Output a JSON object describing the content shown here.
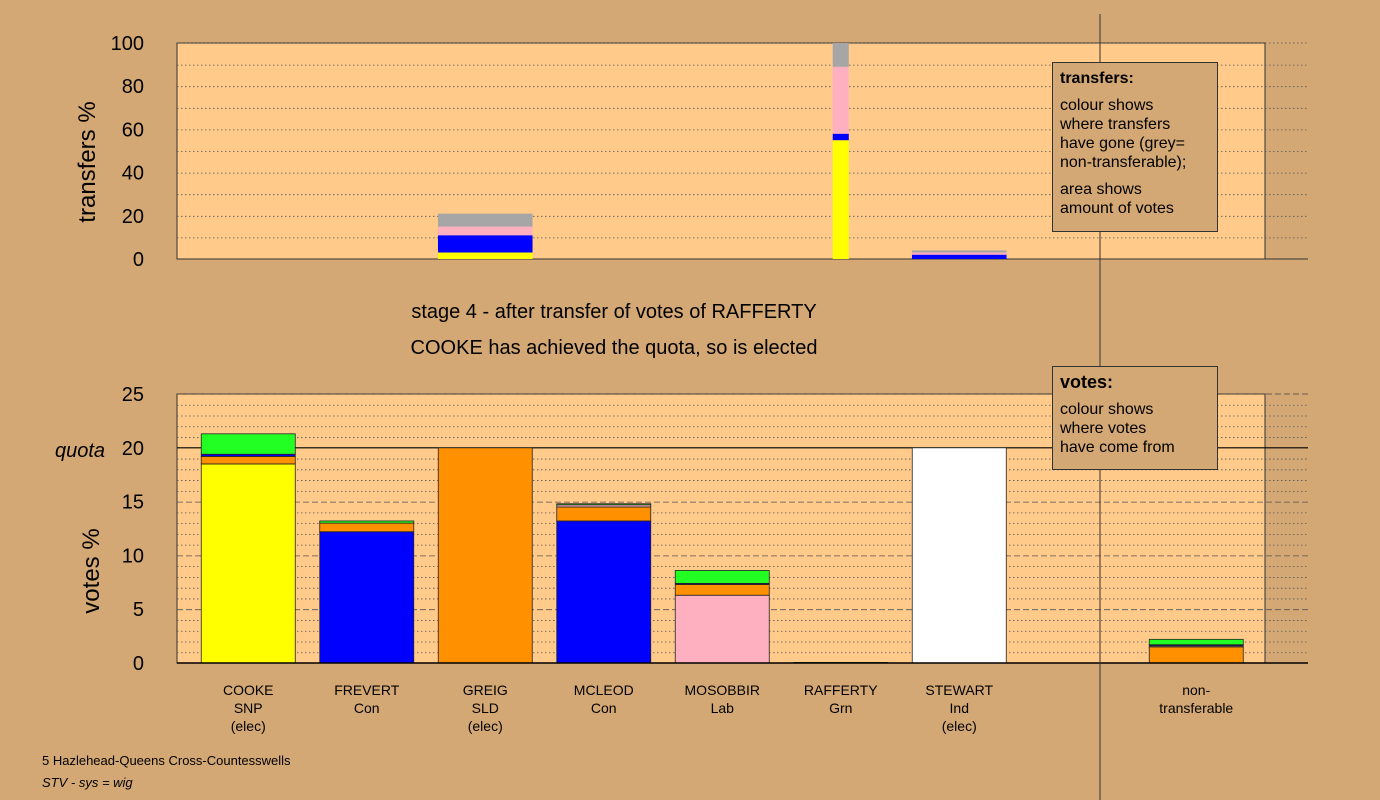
{
  "colors": {
    "background": "#d4a874",
    "plot_bg": "#ffca8a",
    "yellow": "#ffff00",
    "blue": "#0000ff",
    "orange": "#ff9100",
    "pink": "#ffb0c0",
    "green": "#22ff22",
    "white": "#ffffff",
    "grey": "#a6a6a6"
  },
  "stage_text": {
    "line1": "stage 4 - after transfer of votes of RAFFERTY",
    "line2": "COOKE has achieved the quota, so is elected"
  },
  "transfers_legend": {
    "title": "transfers:",
    "lines": [
      "colour shows",
      "where transfers",
      "have gone (grey=",
      "non-transferable);"
    ],
    "lines2": [
      "area shows",
      "amount of votes"
    ]
  },
  "votes_legend": {
    "title": "votes:",
    "lines": [
      "colour shows",
      "where votes",
      "have come from"
    ]
  },
  "footer": {
    "ward": "5 Hazlehead-Queens Cross-Countesswells",
    "system": "STV - sys = wig"
  },
  "chart_data": [
    {
      "type": "bar",
      "ylabel": "transfers %",
      "ylim": [
        0,
        100
      ],
      "yticks": [
        0,
        20,
        40,
        60,
        80,
        100
      ],
      "bars": [
        {
          "column": 2,
          "width_frac": 0.6,
          "segments": [
            {
              "color": "yellow",
              "value": 3
            },
            {
              "color": "blue",
              "value": 8
            },
            {
              "color": "pink",
              "value": 4
            },
            {
              "color": "grey",
              "value": 6
            }
          ]
        },
        {
          "column": 5,
          "width_frac": 0.12,
          "segments": [
            {
              "color": "yellow",
              "value": 55
            },
            {
              "color": "blue",
              "value": 3
            },
            {
              "color": "pink",
              "value": 31
            },
            {
              "color": "grey",
              "value": 11
            }
          ]
        },
        {
          "column": 6,
          "width_frac": 0.6,
          "segments": [
            {
              "color": "blue",
              "value": 2
            },
            {
              "color": "pink",
              "value": 1
            },
            {
              "color": "grey",
              "value": 1
            }
          ]
        }
      ]
    },
    {
      "type": "bar",
      "ylabel": "votes %",
      "quota_label": "quota",
      "quota": 20,
      "ylim": [
        0,
        25
      ],
      "yticks": [
        0,
        5,
        10,
        15,
        20,
        25
      ],
      "categories": [
        {
          "name": "COOKE",
          "party": "SNP",
          "status": "(elec)"
        },
        {
          "name": "FREVERT",
          "party": "Con",
          "status": ""
        },
        {
          "name": "GREIG",
          "party": "SLD",
          "status": "(elec)"
        },
        {
          "name": "MCLEOD",
          "party": "Con",
          "status": ""
        },
        {
          "name": "MOSOBBIR",
          "party": "Lab",
          "status": ""
        },
        {
          "name": "RAFFERTY",
          "party": "Grn",
          "status": ""
        },
        {
          "name": "STEWART",
          "party": "Ind",
          "status": "(elec)"
        },
        {
          "name": "non-",
          "party": "transferable",
          "status": ""
        }
      ],
      "stacks": [
        [
          {
            "color": "yellow",
            "value": 18.5
          },
          {
            "color": "orange",
            "value": 0.7
          },
          {
            "color": "blue",
            "value": 0.2
          },
          {
            "color": "green",
            "value": 1.9
          }
        ],
        [
          {
            "color": "blue",
            "value": 12.2
          },
          {
            "color": "orange",
            "value": 0.8
          },
          {
            "color": "green",
            "value": 0.2
          }
        ],
        [
          {
            "color": "orange",
            "value": 20
          }
        ],
        [
          {
            "color": "blue",
            "value": 13.2
          },
          {
            "color": "orange",
            "value": 1.3
          },
          {
            "color": "pink",
            "value": 0.2
          },
          {
            "color": "green",
            "value": 0.1
          }
        ],
        [
          {
            "color": "pink",
            "value": 6.3
          },
          {
            "color": "orange",
            "value": 1
          },
          {
            "color": "blue",
            "value": 0.1
          },
          {
            "color": "green",
            "value": 1.2
          }
        ],
        [
          {
            "color": "green",
            "value": 0.05
          }
        ],
        [
          {
            "color": "white",
            "value": 20
          }
        ],
        [
          {
            "color": "orange",
            "value": 1.5
          },
          {
            "color": "pink",
            "value": 0.1
          },
          {
            "color": "blue",
            "value": 0.1
          },
          {
            "color": "green",
            "value": 0.5
          }
        ]
      ]
    }
  ]
}
